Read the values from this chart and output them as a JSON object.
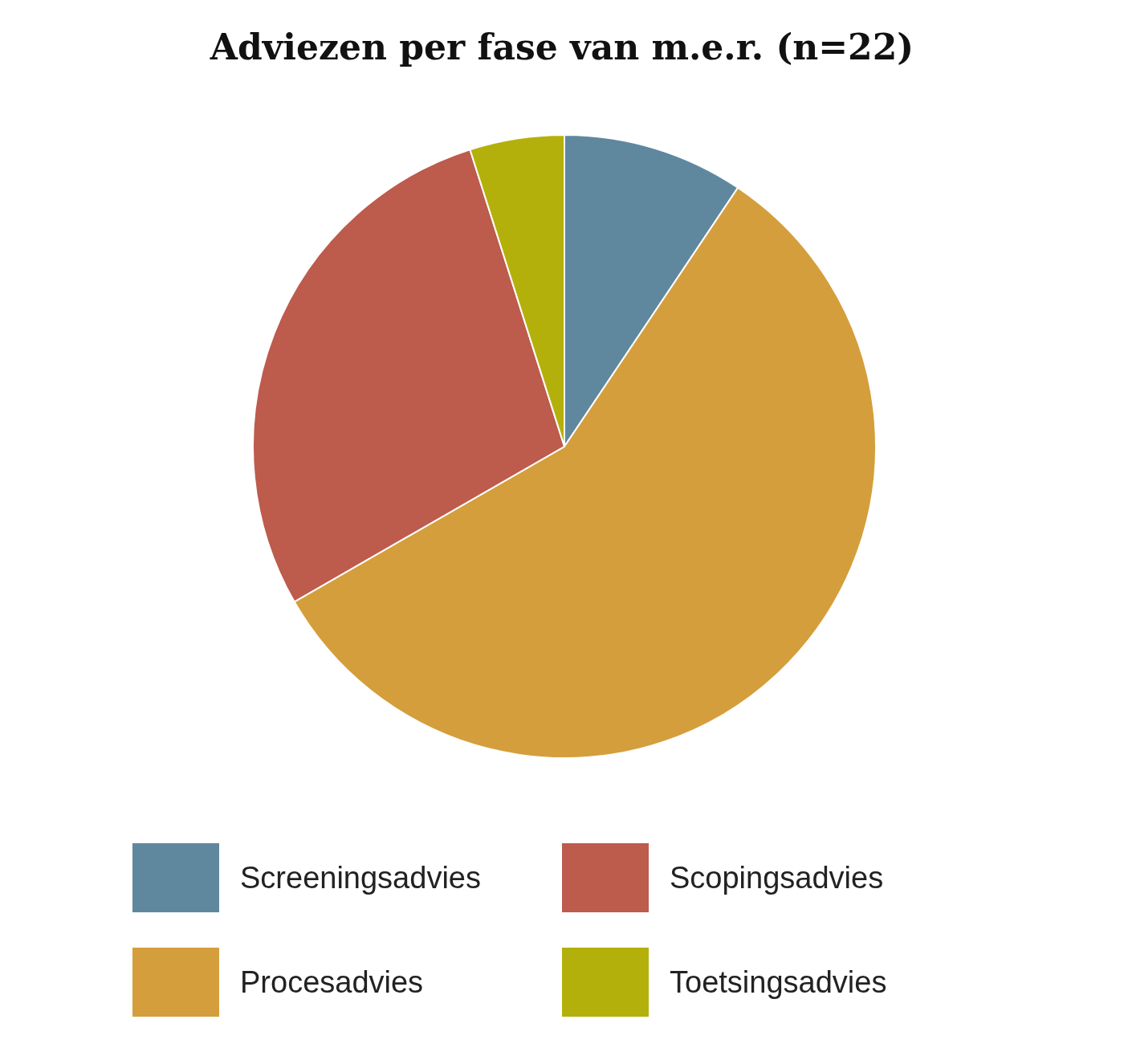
{
  "chart_data": {
    "type": "pie",
    "title": "Adviezen per fase van m.e.r. (n=22)",
    "categories": [
      "Screeningsadvies",
      "Procesadvies",
      "Scopingsadvies",
      "Toetsingsadvies"
    ],
    "values": [
      9.4,
      57.3,
      28.4,
      4.9
    ],
    "colors": [
      "#5f889f",
      "#d59e3c",
      "#bd5b4c",
      "#b4b00b"
    ],
    "legend": "bottom"
  }
}
